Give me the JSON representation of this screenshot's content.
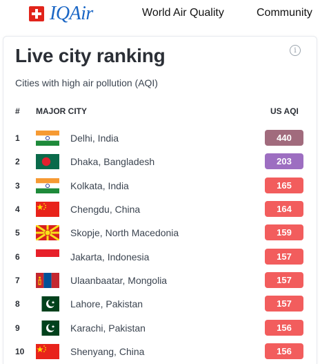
{
  "header": {
    "brand": "IQAir",
    "nav": [
      "World Air Quality",
      "Community"
    ]
  },
  "card": {
    "title": "Live city ranking",
    "subtitle": "Cities with high air pollution (AQI)",
    "info_icon": "info-icon",
    "columns": {
      "rank": "#",
      "city": "MAJOR CITY",
      "aqi": "US AQI"
    }
  },
  "colors": {
    "hazardous": "#a16b7d",
    "very_unhealthy": "#9d6ec1",
    "unhealthy": "#f25d5d",
    "brand": "#1a66c5"
  },
  "ranking": [
    {
      "rank": "1",
      "city": "Delhi, India",
      "aqi": "440",
      "flag": "india-flag-icon",
      "level": "hazardous"
    },
    {
      "rank": "2",
      "city": "Dhaka, Bangladesh",
      "aqi": "203",
      "flag": "bangladesh-flag-icon",
      "level": "very_unhealthy"
    },
    {
      "rank": "3",
      "city": "Kolkata, India",
      "aqi": "165",
      "flag": "india-flag-icon",
      "level": "unhealthy"
    },
    {
      "rank": "4",
      "city": "Chengdu, China",
      "aqi": "164",
      "flag": "china-flag-icon",
      "level": "unhealthy"
    },
    {
      "rank": "5",
      "city": "Skopje, North Macedonia",
      "aqi": "159",
      "flag": "north-macedonia-flag-icon",
      "level": "unhealthy"
    },
    {
      "rank": "6",
      "city": "Jakarta, Indonesia",
      "aqi": "157",
      "flag": "indonesia-flag-icon",
      "level": "unhealthy"
    },
    {
      "rank": "7",
      "city": "Ulaanbaatar, Mongolia",
      "aqi": "157",
      "flag": "mongolia-flag-icon",
      "level": "unhealthy"
    },
    {
      "rank": "8",
      "city": "Lahore, Pakistan",
      "aqi": "157",
      "flag": "pakistan-flag-icon",
      "level": "unhealthy"
    },
    {
      "rank": "9",
      "city": "Karachi, Pakistan",
      "aqi": "156",
      "flag": "pakistan-flag-icon",
      "level": "unhealthy"
    },
    {
      "rank": "10",
      "city": "Shenyang, China",
      "aqi": "156",
      "flag": "china-flag-icon",
      "level": "unhealthy"
    }
  ]
}
